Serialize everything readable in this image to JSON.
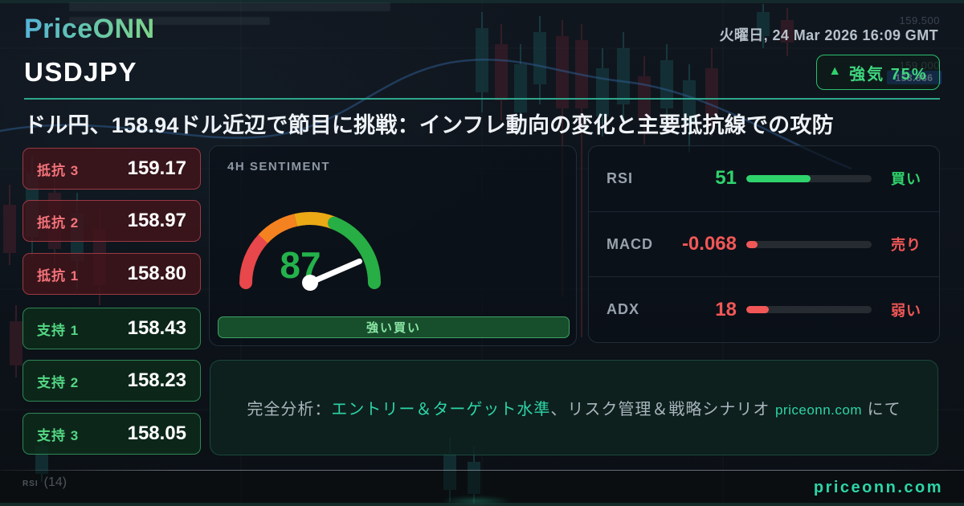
{
  "header": {
    "logo": "PriceONN",
    "datetime": "火曜日, 24 Mar 2026 16:09 GMT",
    "symbol": "USDJPY",
    "badge": {
      "icon": "▲",
      "label": "強気",
      "percent": "75%"
    }
  },
  "headline": "ドル円、158.94ドル近辺で節目に挑戦：インフレ動向の変化と主要抵抗線での攻防",
  "levels": {
    "resistance": [
      {
        "label": "抵抗 3",
        "value": "159.17"
      },
      {
        "label": "抵抗 2",
        "value": "158.97"
      },
      {
        "label": "抵抗 1",
        "value": "158.80"
      }
    ],
    "support": [
      {
        "label": "支持 1",
        "value": "158.43"
      },
      {
        "label": "支持 2",
        "value": "158.23"
      },
      {
        "label": "支持 3",
        "value": "158.05"
      }
    ]
  },
  "sentiment": {
    "title": "4H SENTIMENT",
    "value": 87,
    "label": "強い買い"
  },
  "indicators": [
    {
      "name": "RSI",
      "value": "51",
      "signal": "買い",
      "tone": "bull",
      "bar_width": "51%"
    },
    {
      "name": "MACD",
      "value": "-0.068",
      "signal": "売り",
      "tone": "bear",
      "bar_width": "9%"
    },
    {
      "name": "ADX",
      "value": "18",
      "signal": "弱い",
      "tone": "bear",
      "bar_width": "18%"
    }
  ],
  "cta": {
    "prefix": "完全分析：",
    "highlight": "エントリー＆ターゲット水準",
    "middle": "、リスク管理＆戦略シナリオ ",
    "site": "priceonn.com",
    "suffix": " にて"
  },
  "footer": {
    "indicator": "RSI",
    "period": "(14)",
    "site": "priceonn.com"
  },
  "background": {
    "price_label_1": "159.500",
    "price_label_2": "159.000",
    "price_tag": "158.886"
  },
  "colors": {
    "accent_teal": "#2dd4a8",
    "bull_green": "#2fd36c",
    "bear_red": "#f25757",
    "resistance_border": "#993a43",
    "support_border": "#2f8654",
    "gauge_segments": [
      "#e8474b",
      "#f58220",
      "#eaa915",
      "#27ae45"
    ],
    "price_tag_blue": "#2a5cd2"
  }
}
